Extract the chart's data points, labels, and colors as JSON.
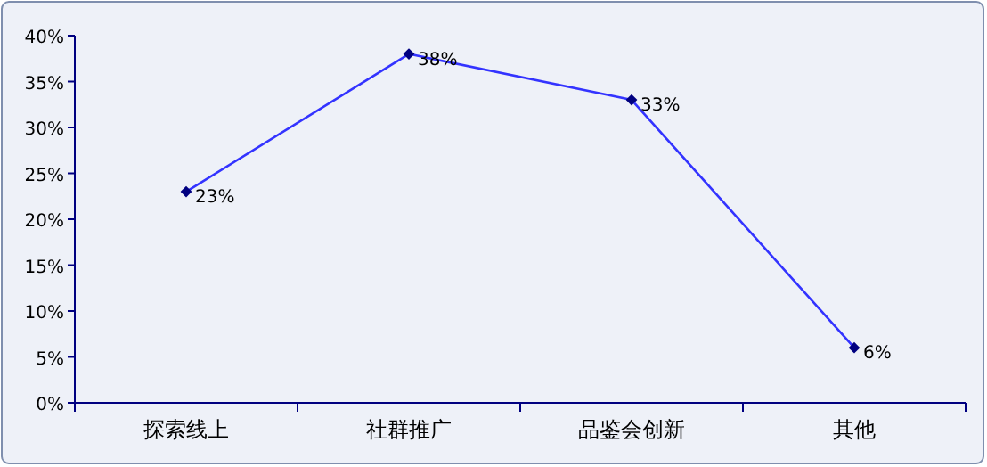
{
  "chart_data": {
    "type": "line",
    "categories": [
      "探索线上",
      "社群推广",
      "品鉴会创新",
      "其他"
    ],
    "series": [
      {
        "color": "#3333ff",
        "values": [
          23,
          38,
          33,
          6
        ],
        "value_labels": [
          "23%",
          "38%",
          "33%",
          "6%"
        ]
      }
    ],
    "ylim": [
      0,
      40
    ],
    "yticks": [
      {
        "value": 0,
        "label": "0%"
      },
      {
        "value": 5,
        "label": "5%"
      },
      {
        "value": 10,
        "label": "10%"
      },
      {
        "value": 15,
        "label": "15%"
      },
      {
        "value": 20,
        "label": "20%"
      },
      {
        "value": 25,
        "label": "25%"
      },
      {
        "value": 30,
        "label": "30%"
      },
      {
        "value": 35,
        "label": "35%"
      },
      {
        "value": 40,
        "label": "40%"
      }
    ],
    "marker": "diamond",
    "grid": false
  }
}
